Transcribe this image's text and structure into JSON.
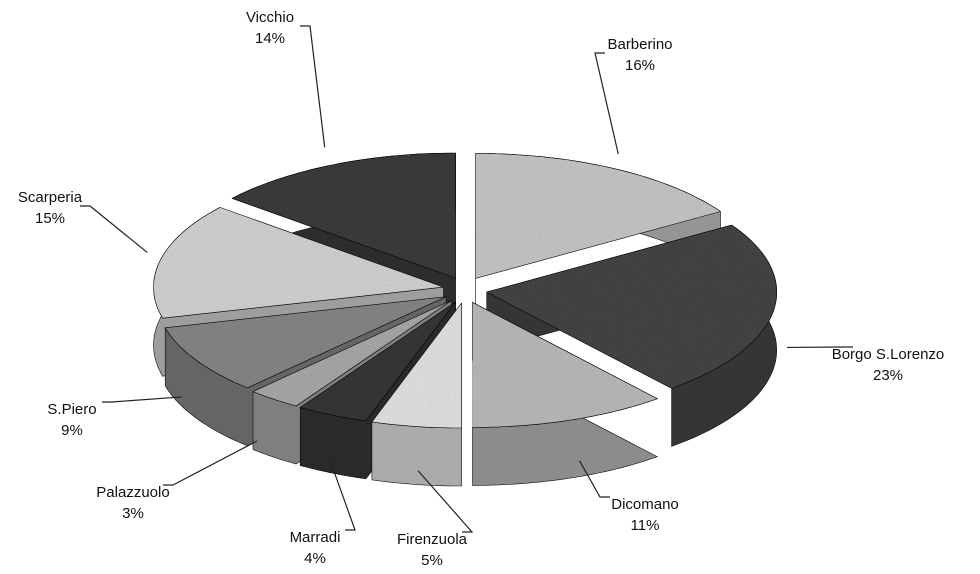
{
  "chart_data": {
    "type": "pie",
    "categories": [
      "Barberino",
      "Borgo S.Lorenzo",
      "Dicomano",
      "Firenzuola",
      "Marradi",
      "Palazzuolo",
      "S.Piero",
      "Scarperia",
      "Vicchio"
    ],
    "values": [
      16,
      23,
      11,
      5,
      4,
      3,
      9,
      15,
      14
    ],
    "value_labels": [
      "16%",
      "23%",
      "11%",
      "5%",
      "4%",
      "3%",
      "9%",
      "15%",
      "14%"
    ],
    "colors": [
      "#cfcfcf",
      "#4a4a4a",
      "#c2c2c2",
      "#ececec",
      "#3a3a3a",
      "#b0b0b0",
      "#8c8c8c",
      "#dcdcdc",
      "#3f3f3f"
    ]
  }
}
